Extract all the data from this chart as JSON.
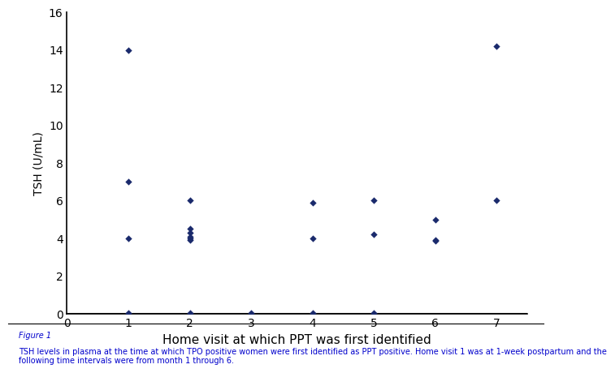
{
  "x_values": [
    1,
    1,
    1,
    1,
    2,
    2,
    2,
    2,
    2,
    2,
    2,
    3,
    4,
    4,
    4,
    5,
    5,
    5,
    6,
    6,
    6,
    7,
    7
  ],
  "y_values": [
    14.0,
    7.0,
    4.0,
    0.05,
    6.0,
    4.5,
    4.3,
    4.1,
    4.0,
    3.9,
    0.05,
    0.05,
    5.9,
    4.0,
    0.05,
    6.0,
    4.2,
    0.05,
    5.0,
    3.85,
    3.9,
    14.2,
    6.0
  ],
  "marker": "D",
  "marker_color": "#1a2a6c",
  "marker_size": 18,
  "xlim": [
    0,
    7.5
  ],
  "ylim": [
    0,
    16
  ],
  "xticks": [
    0,
    1,
    2,
    3,
    4,
    5,
    6,
    7
  ],
  "yticks": [
    0,
    2,
    4,
    6,
    8,
    10,
    12,
    14,
    16
  ],
  "xlabel": "Home visit at which PPT was first identified",
  "ylabel": "TSH (U/mL)",
  "xlabel_fontsize": 11,
  "ylabel_fontsize": 10,
  "tick_fontsize": 10,
  "figure_caption_title": "Figure 1",
  "figure_caption": "TSH levels in plasma at the time at which TPO positive women were first identified as PPT positive. Home visit 1 was at 1-week postpartum and the\nfollowing time intervals were from month 1 through 6.",
  "caption_color": "#0000cc",
  "caption_title_fontsize": 7,
  "caption_fontsize": 7,
  "bg_color": "#ffffff",
  "spine_linewidth": 1.2
}
